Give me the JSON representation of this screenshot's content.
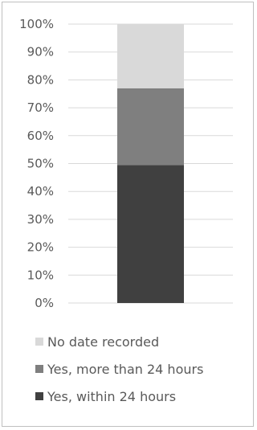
{
  "chart_data": {
    "type": "bar",
    "stacked": true,
    "categories": [
      ""
    ],
    "series": [
      {
        "name": "Yes, within 24 hours",
        "values": [
          49.5
        ],
        "color": "#404040"
      },
      {
        "name": "Yes, more than 24 hours",
        "values": [
          27.5
        ],
        "color": "#7f7f7f"
      },
      {
        "name": "No date recorded",
        "values": [
          23.0
        ],
        "color": "#d9d9d9"
      }
    ],
    "ylim": [
      0,
      100
    ],
    "yticks": [
      "0%",
      "10%",
      "20%",
      "30%",
      "40%",
      "50%",
      "60%",
      "70%",
      "80%",
      "90%",
      "100%"
    ],
    "grid": true,
    "legend_position": "bottom",
    "legend_order": [
      "No date recorded",
      "Yes, more than 24 hours",
      "Yes, within 24 hours"
    ]
  }
}
